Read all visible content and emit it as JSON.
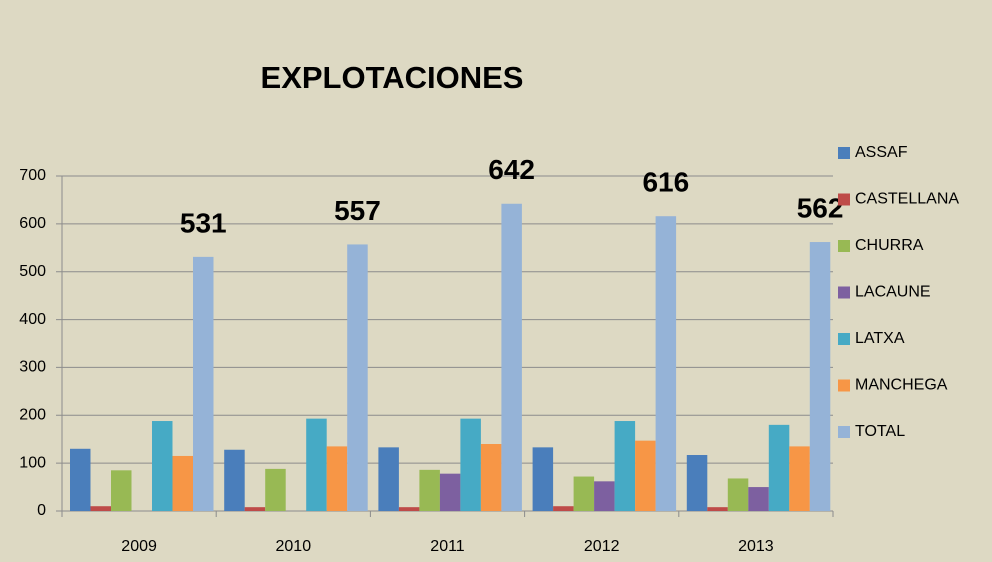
{
  "chart_data": {
    "type": "bar",
    "title": "EXPLOTACIONES",
    "categories": [
      "2009",
      "2010",
      "2011",
      "2012",
      "2013"
    ],
    "series": [
      {
        "name": "ASSAF",
        "color": "#4a7ebb",
        "values": [
          130,
          128,
          133,
          133,
          117
        ]
      },
      {
        "name": "CASTELLANA",
        "color": "#be4b48",
        "values": [
          10,
          8,
          8,
          10,
          8
        ]
      },
      {
        "name": "CHURRA",
        "color": "#98b954",
        "values": [
          85,
          88,
          86,
          72,
          68
        ]
      },
      {
        "name": "LACAUNE",
        "color": "#7d60a0",
        "values": [
          0,
          0,
          78,
          62,
          50
        ]
      },
      {
        "name": "LATXA",
        "color": "#46aac5",
        "values": [
          188,
          193,
          193,
          188,
          180
        ]
      },
      {
        "name": "MANCHEGA",
        "color": "#f79646",
        "values": [
          115,
          135,
          140,
          147,
          135
        ]
      },
      {
        "name": "TOTAL",
        "color": "#95b3d7",
        "values": [
          531,
          557,
          642,
          616,
          562
        ]
      }
    ],
    "data_labels_series": 6,
    "ylim": [
      0,
      700
    ],
    "yticks": [
      0,
      100,
      200,
      300,
      400,
      500,
      600,
      700
    ],
    "grid": true,
    "legend": "right"
  }
}
